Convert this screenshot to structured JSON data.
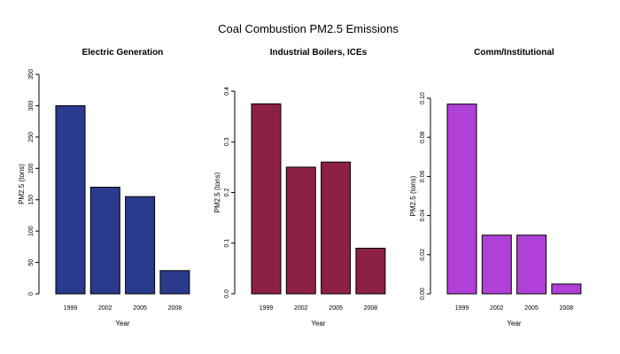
{
  "title": "Coal Combustion PM2.5 Emissions",
  "chart_data": [
    {
      "type": "bar",
      "title": "Electric Generation",
      "xlabel": "Year",
      "ylabel": "PM2.5 (tons)",
      "categories": [
        "1999",
        "2002",
        "2005",
        "2008"
      ],
      "values": [
        300,
        170,
        155,
        37
      ],
      "ylim": [
        0,
        350
      ],
      "yticks": [
        "0",
        "50",
        "100",
        "150",
        "200",
        "250",
        "300",
        "350"
      ],
      "color": "#2a3a8c"
    },
    {
      "type": "bar",
      "title": "Industrial Boilers, ICEs",
      "xlabel": "Year",
      "ylabel": "PM2.5 (tons)",
      "categories": [
        "1999",
        "2002",
        "2005",
        "2008"
      ],
      "values": [
        0.375,
        0.25,
        0.26,
        0.09
      ],
      "ylim": [
        0,
        0.4
      ],
      "yticks": [
        "0.0",
        "0.1",
        "0.2",
        "0.3",
        "0.4"
      ],
      "color": "#8c2045"
    },
    {
      "type": "bar",
      "title": "Comm/Institutional",
      "xlabel": "Year",
      "ylabel": "PM2.5 (tons)",
      "categories": [
        "1999",
        "2002",
        "2005",
        "2008"
      ],
      "values": [
        0.097,
        0.03,
        0.03,
        0.005
      ],
      "ylim": [
        0,
        0.1
      ],
      "yticks": [
        "0.00",
        "0.02",
        "0.04",
        "0.06",
        "0.08",
        "0.10"
      ],
      "color": "#b040d8"
    }
  ]
}
